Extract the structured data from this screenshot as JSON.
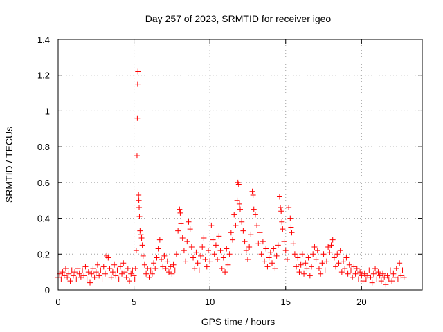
{
  "chart_data": {
    "type": "scatter",
    "title": "Day 257 of 2023, SRMTID for receiver igeo",
    "xlabel": "GPS time / hours",
    "ylabel": "SRMTID / TECUs",
    "xlim": [
      0,
      24
    ],
    "ylim": [
      0,
      1.4
    ],
    "grid": true,
    "marker": "+",
    "color": "#ff0000",
    "x_ticks": [
      {
        "value": 0,
        "label": "0"
      },
      {
        "value": 5,
        "label": "5"
      },
      {
        "value": 10,
        "label": "10"
      },
      {
        "value": 15,
        "label": "15"
      },
      {
        "value": 20,
        "label": "20"
      }
    ],
    "y_ticks": [
      {
        "value": 0,
        "label": "0"
      },
      {
        "value": 0.2,
        "label": "0.2"
      },
      {
        "value": 0.4,
        "label": "0.4"
      },
      {
        "value": 0.6,
        "label": "0.6"
      },
      {
        "value": 0.8,
        "label": "0.8"
      },
      {
        "value": 1.0,
        "label": "1"
      },
      {
        "value": 1.2,
        "label": "1.2"
      },
      {
        "value": 1.4,
        "label": "1.4"
      }
    ],
    "series": [
      {
        "name": "SRMTID",
        "points": [
          [
            0.0,
            0.07
          ],
          [
            0.1,
            0.09
          ],
          [
            0.2,
            0.06
          ],
          [
            0.3,
            0.1
          ],
          [
            0.4,
            0.08
          ],
          [
            0.5,
            0.12
          ],
          [
            0.6,
            0.07
          ],
          [
            0.7,
            0.09
          ],
          [
            0.8,
            0.05
          ],
          [
            0.9,
            0.11
          ],
          [
            1.0,
            0.08
          ],
          [
            1.1,
            0.1
          ],
          [
            1.2,
            0.06
          ],
          [
            1.3,
            0.12
          ],
          [
            1.4,
            0.09
          ],
          [
            1.5,
            0.07
          ],
          [
            1.6,
            0.11
          ],
          [
            1.7,
            0.08
          ],
          [
            1.8,
            0.13
          ],
          [
            1.9,
            0.06
          ],
          [
            2.0,
            0.1
          ],
          [
            2.1,
            0.04
          ],
          [
            2.2,
            0.09
          ],
          [
            2.3,
            0.12
          ],
          [
            2.4,
            0.07
          ],
          [
            2.5,
            0.1
          ],
          [
            2.6,
            0.14
          ],
          [
            2.7,
            0.08
          ],
          [
            2.8,
            0.11
          ],
          [
            2.9,
            0.06
          ],
          [
            3.0,
            0.13
          ],
          [
            3.1,
            0.09
          ],
          [
            3.2,
            0.19
          ],
          [
            3.3,
            0.18
          ],
          [
            3.4,
            0.12
          ],
          [
            3.5,
            0.07
          ],
          [
            3.6,
            0.1
          ],
          [
            3.7,
            0.14
          ],
          [
            3.8,
            0.08
          ],
          [
            3.9,
            0.11
          ],
          [
            4.0,
            0.06
          ],
          [
            4.1,
            0.13
          ],
          [
            4.2,
            0.09
          ],
          [
            4.3,
            0.15
          ],
          [
            4.4,
            0.1
          ],
          [
            4.5,
            0.07
          ],
          [
            4.6,
            0.12
          ],
          [
            4.7,
            0.05
          ],
          [
            4.8,
            0.09
          ],
          [
            4.9,
            0.11
          ],
          [
            5.0,
            0.08
          ],
          [
            5.05,
            0.06
          ],
          [
            5.1,
            0.12
          ],
          [
            5.15,
            0.22
          ],
          [
            5.2,
            0.75
          ],
          [
            5.22,
            0.96
          ],
          [
            5.24,
            1.15
          ],
          [
            5.26,
            1.22
          ],
          [
            5.3,
            0.53
          ],
          [
            5.32,
            0.5
          ],
          [
            5.34,
            0.46
          ],
          [
            5.36,
            0.41
          ],
          [
            5.4,
            0.33
          ],
          [
            5.45,
            0.31
          ],
          [
            5.5,
            0.29
          ],
          [
            5.55,
            0.25
          ],
          [
            5.6,
            0.19
          ],
          [
            5.7,
            0.14
          ],
          [
            5.8,
            0.09
          ],
          [
            5.9,
            0.12
          ],
          [
            6.0,
            0.07
          ],
          [
            6.1,
            0.11
          ],
          [
            6.2,
            0.09
          ],
          [
            6.3,
            0.15
          ],
          [
            6.4,
            0.12
          ],
          [
            6.5,
            0.18
          ],
          [
            6.6,
            0.23
          ],
          [
            6.7,
            0.28
          ],
          [
            6.8,
            0.17
          ],
          [
            6.9,
            0.13
          ],
          [
            7.0,
            0.19
          ],
          [
            7.1,
            0.12
          ],
          [
            7.2,
            0.16
          ],
          [
            7.3,
            0.1
          ],
          [
            7.4,
            0.13
          ],
          [
            7.5,
            0.09
          ],
          [
            7.6,
            0.14
          ],
          [
            7.7,
            0.11
          ],
          [
            7.8,
            0.2
          ],
          [
            7.9,
            0.33
          ],
          [
            8.0,
            0.45
          ],
          [
            8.05,
            0.43
          ],
          [
            8.1,
            0.37
          ],
          [
            8.2,
            0.29
          ],
          [
            8.3,
            0.22
          ],
          [
            8.4,
            0.16
          ],
          [
            8.5,
            0.27
          ],
          [
            8.6,
            0.38
          ],
          [
            8.7,
            0.34
          ],
          [
            8.8,
            0.24
          ],
          [
            8.9,
            0.18
          ],
          [
            9.0,
            0.12
          ],
          [
            9.1,
            0.21
          ],
          [
            9.2,
            0.15
          ],
          [
            9.3,
            0.11
          ],
          [
            9.4,
            0.19
          ],
          [
            9.5,
            0.24
          ],
          [
            9.6,
            0.29
          ],
          [
            9.7,
            0.17
          ],
          [
            9.8,
            0.13
          ],
          [
            9.9,
            0.22
          ],
          [
            10.0,
            0.16
          ],
          [
            10.1,
            0.36
          ],
          [
            10.2,
            0.28
          ],
          [
            10.3,
            0.2
          ],
          [
            10.4,
            0.25
          ],
          [
            10.5,
            0.17
          ],
          [
            10.6,
            0.3
          ],
          [
            10.7,
            0.22
          ],
          [
            10.8,
            0.12
          ],
          [
            10.9,
            0.18
          ],
          [
            11.0,
            0.1
          ],
          [
            11.1,
            0.23
          ],
          [
            11.2,
            0.14
          ],
          [
            11.3,
            0.2
          ],
          [
            11.4,
            0.32
          ],
          [
            11.5,
            0.28
          ],
          [
            11.6,
            0.42
          ],
          [
            11.7,
            0.36
          ],
          [
            11.8,
            0.5
          ],
          [
            11.85,
            0.6
          ],
          [
            11.9,
            0.59
          ],
          [
            11.95,
            0.48
          ],
          [
            12.0,
            0.45
          ],
          [
            12.1,
            0.38
          ],
          [
            12.2,
            0.33
          ],
          [
            12.3,
            0.27
          ],
          [
            12.4,
            0.22
          ],
          [
            12.5,
            0.17
          ],
          [
            12.6,
            0.24
          ],
          [
            12.7,
            0.31
          ],
          [
            12.8,
            0.55
          ],
          [
            12.85,
            0.53
          ],
          [
            12.9,
            0.45
          ],
          [
            13.0,
            0.42
          ],
          [
            13.1,
            0.36
          ],
          [
            13.2,
            0.26
          ],
          [
            13.3,
            0.32
          ],
          [
            13.4,
            0.2
          ],
          [
            13.5,
            0.27
          ],
          [
            13.6,
            0.16
          ],
          [
            13.7,
            0.23
          ],
          [
            13.8,
            0.13
          ],
          [
            13.9,
            0.18
          ],
          [
            14.0,
            0.21
          ],
          [
            14.1,
            0.15
          ],
          [
            14.2,
            0.23
          ],
          [
            14.3,
            0.12
          ],
          [
            14.4,
            0.19
          ],
          [
            14.5,
            0.25
          ],
          [
            14.6,
            0.52
          ],
          [
            14.65,
            0.46
          ],
          [
            14.7,
            0.44
          ],
          [
            14.75,
            0.38
          ],
          [
            14.8,
            0.34
          ],
          [
            14.9,
            0.27
          ],
          [
            15.0,
            0.22
          ],
          [
            15.1,
            0.17
          ],
          [
            15.2,
            0.46
          ],
          [
            15.3,
            0.4
          ],
          [
            15.35,
            0.35
          ],
          [
            15.4,
            0.32
          ],
          [
            15.5,
            0.26
          ],
          [
            15.6,
            0.2
          ],
          [
            15.7,
            0.13
          ],
          [
            15.8,
            0.18
          ],
          [
            15.9,
            0.1
          ],
          [
            16.0,
            0.14
          ],
          [
            16.1,
            0.2
          ],
          [
            16.2,
            0.09
          ],
          [
            16.3,
            0.15
          ],
          [
            16.4,
            0.12
          ],
          [
            16.5,
            0.18
          ],
          [
            16.6,
            0.08
          ],
          [
            16.7,
            0.13
          ],
          [
            16.8,
            0.2
          ],
          [
            16.9,
            0.24
          ],
          [
            17.0,
            0.17
          ],
          [
            17.1,
            0.22
          ],
          [
            17.2,
            0.12
          ],
          [
            17.3,
            0.09
          ],
          [
            17.4,
            0.15
          ],
          [
            17.5,
            0.2
          ],
          [
            17.6,
            0.11
          ],
          [
            17.7,
            0.16
          ],
          [
            17.8,
            0.24
          ],
          [
            17.9,
            0.21
          ],
          [
            18.0,
            0.25
          ],
          [
            18.1,
            0.28
          ],
          [
            18.2,
            0.18
          ],
          [
            18.3,
            0.13
          ],
          [
            18.4,
            0.2
          ],
          [
            18.5,
            0.15
          ],
          [
            18.6,
            0.22
          ],
          [
            18.7,
            0.1
          ],
          [
            18.8,
            0.16
          ],
          [
            18.9,
            0.12
          ],
          [
            19.0,
            0.18
          ],
          [
            19.1,
            0.09
          ],
          [
            19.2,
            0.14
          ],
          [
            19.3,
            0.11
          ],
          [
            19.4,
            0.07
          ],
          [
            19.5,
            0.13
          ],
          [
            19.6,
            0.09
          ],
          [
            19.7,
            0.12
          ],
          [
            19.8,
            0.06
          ],
          [
            19.9,
            0.1
          ],
          [
            20.0,
            0.08
          ],
          [
            20.1,
            0.05
          ],
          [
            20.2,
            0.09
          ],
          [
            20.3,
            0.06
          ],
          [
            20.4,
            0.08
          ],
          [
            20.5,
            0.11
          ],
          [
            20.6,
            0.07
          ],
          [
            20.7,
            0.04
          ],
          [
            20.8,
            0.09
          ],
          [
            20.9,
            0.12
          ],
          [
            21.0,
            0.06
          ],
          [
            21.1,
            0.1
          ],
          [
            21.2,
            0.08
          ],
          [
            21.3,
            0.05
          ],
          [
            21.4,
            0.09
          ],
          [
            21.5,
            0.07
          ],
          [
            21.6,
            0.03
          ],
          [
            21.7,
            0.08
          ],
          [
            21.8,
            0.06
          ],
          [
            21.9,
            0.11
          ],
          [
            22.0,
            0.05
          ],
          [
            22.1,
            0.09
          ],
          [
            22.2,
            0.07
          ],
          [
            22.3,
            0.12
          ],
          [
            22.4,
            0.06
          ],
          [
            22.5,
            0.15
          ],
          [
            22.6,
            0.08
          ],
          [
            22.7,
            0.11
          ],
          [
            22.8,
            0.07
          ]
        ]
      }
    ]
  }
}
